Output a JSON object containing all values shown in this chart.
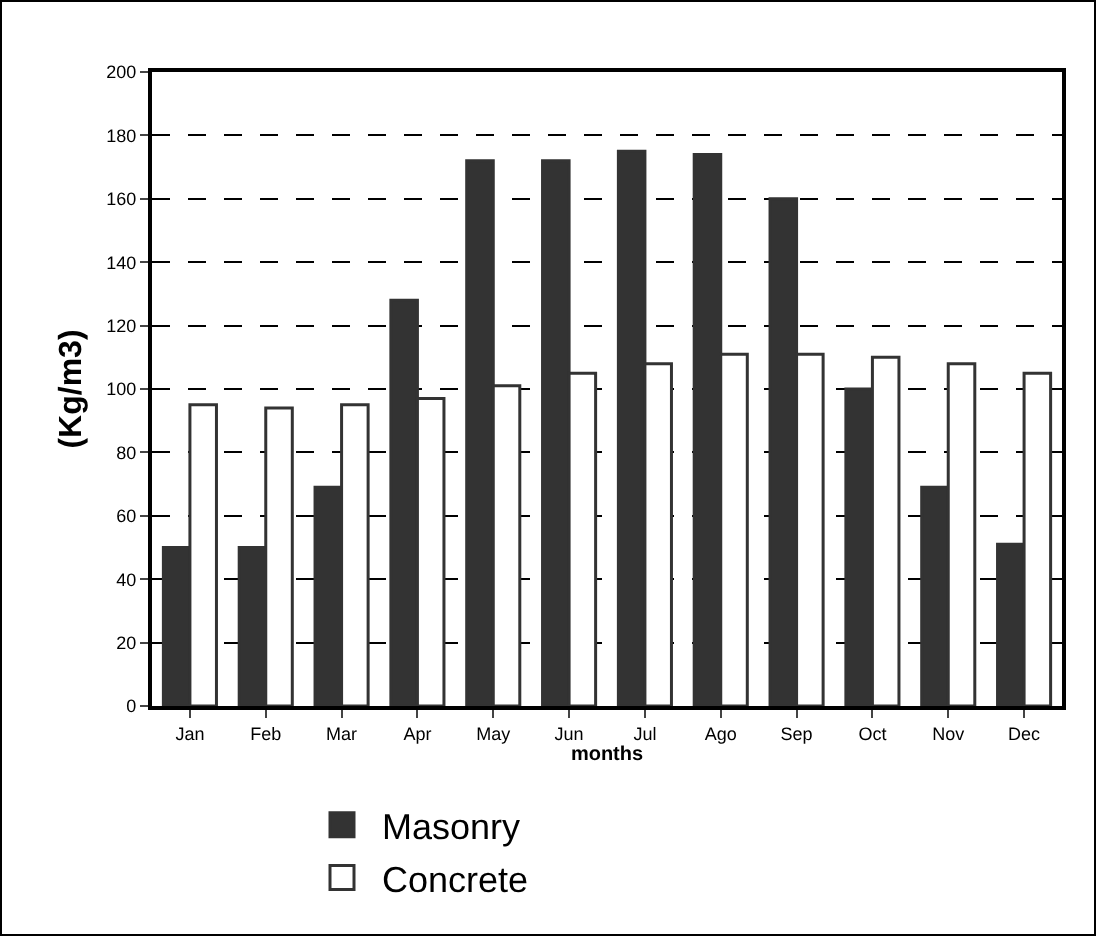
{
  "chart_data": {
    "type": "bar",
    "xlabel": "months",
    "ylabel": "(Kg/m3)",
    "categories": [
      "Jan",
      "Feb",
      "Mar",
      "Apr",
      "May",
      "Jun",
      "Jul",
      "Ago",
      "Sep",
      "Oct",
      "Nov",
      "Dec"
    ],
    "series": [
      {
        "name": "Masonry",
        "color": "#333333",
        "values": [
          50,
          50,
          69,
          128,
          172,
          172,
          175,
          174,
          160,
          100,
          69,
          51
        ]
      },
      {
        "name": "Concrete",
        "color": "#ffffff",
        "values": [
          95,
          94,
          95,
          97,
          101,
          105,
          108,
          111,
          111,
          110,
          108,
          105
        ]
      }
    ],
    "ylim": [
      0,
      200
    ],
    "yticks": [
      0,
      20,
      40,
      60,
      80,
      100,
      120,
      140,
      160,
      180,
      200
    ],
    "grid": "y",
    "legend": "bottom"
  }
}
